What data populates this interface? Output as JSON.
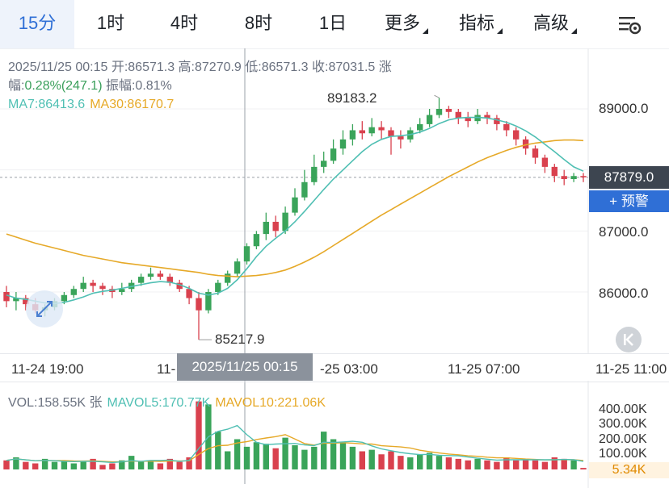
{
  "tabs": [
    {
      "label": "15分",
      "active": true
    },
    {
      "label": "1时"
    },
    {
      "label": "4时"
    },
    {
      "label": "8时"
    },
    {
      "label": "1日"
    },
    {
      "label": "更多",
      "dropdown": true
    },
    {
      "label": "指标",
      "dropdown": true
    },
    {
      "label": "高级",
      "dropdown": true
    }
  ],
  "settings_icon": "settings-sliders-icon",
  "info": {
    "line1": "2025/11/25 00:15 开:86571.3 高:87270.9 低:86571.3 收:87031.5 涨",
    "line2_prefix": "幅:",
    "change": "0.28%(247.1)",
    "amplitude": "振幅:0.81%",
    "ma7": "MA7:86413.6",
    "ma30": "MA30:86170.7"
  },
  "chart_labels": {
    "high": "89183.2",
    "low": "85217.9"
  },
  "y_axis": [
    "89000.0",
    "87000.0",
    "86000.0"
  ],
  "current_price": "87879.0",
  "alert_button": "+ 预警",
  "time_axis": [
    "11-24 19:00",
    "11-",
    "-25 03:00",
    "11-25 07:00",
    "11-25 11:00"
  ],
  "crosshair_time": "2025/11/25 00:15",
  "volume": {
    "vol": "VOL:158.55K 张",
    "mavol5": "MAVOL5:170.77K",
    "mavol10": "MAVOL10:221.06K",
    "y_axis": [
      "400.00K",
      "300.00K",
      "200.00K",
      "100.00K"
    ],
    "current": "5.34K"
  },
  "colors": {
    "up": "#3aa45a",
    "down": "#d9414e",
    "ma7": "#4fbfb3",
    "ma30": "#e6a928",
    "accent": "#2f6fd6"
  },
  "chart_data": {
    "type": "candlestick",
    "y_ticks": [
      86000,
      87000,
      88000,
      89000
    ],
    "candles": [
      [
        86000,
        85850,
        86100,
        85750
      ],
      [
        85850,
        85900,
        86000,
        85700
      ],
      [
        85900,
        85800,
        85950,
        85700
      ],
      [
        85800,
        85700,
        85900,
        85650
      ],
      [
        85700,
        85750,
        85800,
        85600
      ],
      [
        85750,
        85850,
        85900,
        85700
      ],
      [
        85850,
        85950,
        86000,
        85800
      ],
      [
        85950,
        86050,
        86100,
        85900
      ],
      [
        86050,
        86150,
        86250,
        86000
      ],
      [
        86150,
        86100,
        86200,
        86000
      ],
      [
        86100,
        86050,
        86150,
        85950
      ],
      [
        86050,
        86000,
        86100,
        85900
      ],
      [
        86000,
        86050,
        86150,
        85950
      ],
      [
        86050,
        86150,
        86200,
        86000
      ],
      [
        86150,
        86250,
        86300,
        86100
      ],
      [
        86250,
        86300,
        86400,
        86200
      ],
      [
        86300,
        86250,
        86350,
        86200
      ],
      [
        86250,
        86150,
        86300,
        86100
      ],
      [
        86150,
        86050,
        86200,
        86000
      ],
      [
        86050,
        85900,
        86100,
        85800
      ],
      [
        85900,
        85700,
        86000,
        85217.9
      ],
      [
        85700,
        86000,
        86050,
        85650
      ],
      [
        86000,
        86150,
        86200,
        85950
      ],
      [
        86150,
        86300,
        86350,
        86100
      ],
      [
        86300,
        86500,
        86550,
        86250
      ],
      [
        86500,
        86750,
        86800,
        86450
      ],
      [
        86750,
        86950,
        87000,
        86700
      ],
      [
        86950,
        87150,
        87300,
        86850
      ],
      [
        87150,
        87000,
        87250,
        86900
      ],
      [
        87000,
        87300,
        87400,
        86950
      ],
      [
        87300,
        87550,
        87700,
        87250
      ],
      [
        87550,
        87800,
        88000,
        87500
      ],
      [
        87800,
        88050,
        88250,
        87750
      ],
      [
        88050,
        88150,
        88300,
        87950
      ],
      [
        88150,
        88350,
        88500,
        88100
      ],
      [
        88350,
        88500,
        88650,
        88250
      ],
      [
        88500,
        88650,
        88750,
        88400
      ],
      [
        88650,
        88600,
        88800,
        88500
      ],
      [
        88600,
        88700,
        88850,
        88550
      ],
      [
        88700,
        88650,
        88800,
        88500
      ],
      [
        88650,
        88550,
        88700,
        88250
      ],
      [
        88550,
        88500,
        88650,
        88350
      ],
      [
        88500,
        88650,
        88700,
        88450
      ],
      [
        88650,
        88750,
        88850,
        88600
      ],
      [
        88750,
        88900,
        89000,
        88700
      ],
      [
        88900,
        89000,
        89183.2,
        88850
      ],
      [
        89000,
        88950,
        89050,
        88850
      ],
      [
        88950,
        88850,
        89000,
        88750
      ],
      [
        88850,
        88800,
        88950,
        88700
      ],
      [
        88800,
        88900,
        89000,
        88750
      ],
      [
        88900,
        88850,
        88950,
        88750
      ],
      [
        88850,
        88750,
        88900,
        88650
      ],
      [
        88750,
        88650,
        88800,
        88550
      ],
      [
        88650,
        88500,
        88700,
        88400
      ],
      [
        88500,
        88350,
        88550,
        88250
      ],
      [
        88350,
        88200,
        88400,
        88100
      ],
      [
        88200,
        88050,
        88250,
        87950
      ],
      [
        88050,
        87900,
        88100,
        87800
      ],
      [
        87900,
        87850,
        88000,
        87750
      ],
      [
        87850,
        87900,
        87950,
        87800
      ],
      [
        87900,
        87879,
        87950,
        87800
      ]
    ],
    "volumes": [
      60,
      80,
      50,
      40,
      70,
      50,
      60,
      40,
      50,
      70,
      30,
      40,
      60,
      90,
      50,
      60,
      40,
      70,
      50,
      80,
      450,
      430,
      250,
      120,
      200,
      150,
      180,
      170,
      140,
      210,
      160,
      130,
      150,
      250,
      200,
      180,
      150,
      120,
      130,
      100,
      120,
      90,
      80,
      100,
      110,
      90,
      80,
      70,
      60,
      70,
      60,
      50,
      80,
      60,
      70,
      60,
      50,
      80,
      70,
      60,
      10
    ],
    "ma7": [
      85950,
      85900,
      85880,
      85850,
      85820,
      85810,
      85830,
      85870,
      85920,
      85980,
      86010,
      86030,
      86060,
      86090,
      86120,
      86150,
      86170,
      86160,
      86120,
      86060,
      85980,
      85950,
      85980,
      86060,
      86200,
      86380,
      86580,
      86750,
      86880,
      87000,
      87150,
      87320,
      87500,
      87680,
      87850,
      88000,
      88150,
      88300,
      88420,
      88500,
      88550,
      88560,
      88580,
      88620,
      88680,
      88760,
      88820,
      88850,
      88860,
      88860,
      88850,
      88820,
      88780,
      88720,
      88640,
      88540,
      88420,
      88300,
      88170,
      88050,
      87980
    ],
    "ma30": [
      86950,
      86900,
      86850,
      86800,
      86760,
      86720,
      86680,
      86640,
      86600,
      86570,
      86540,
      86510,
      86480,
      86460,
      86440,
      86420,
      86400,
      86380,
      86360,
      86340,
      86320,
      86290,
      86270,
      86260,
      86250,
      86260,
      86270,
      86290,
      86320,
      86360,
      86420,
      86490,
      86570,
      86660,
      86760,
      86860,
      86960,
      87060,
      87160,
      87260,
      87350,
      87440,
      87530,
      87620,
      87710,
      87800,
      87890,
      87970,
      88050,
      88130,
      88200,
      88260,
      88320,
      88370,
      88410,
      88440,
      88460,
      88480,
      88490,
      88490,
      88480
    ]
  }
}
